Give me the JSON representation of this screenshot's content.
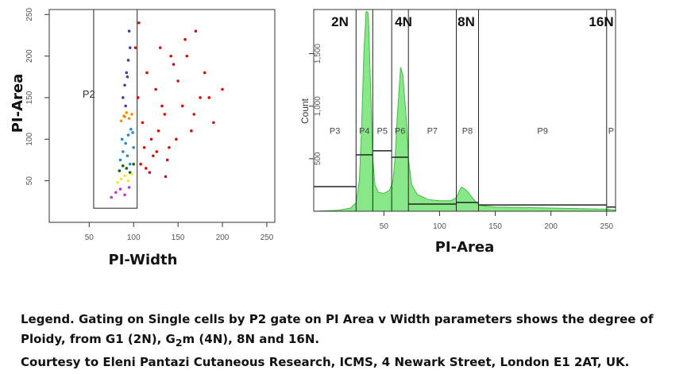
{
  "chart_data": [
    {
      "type": "scatter",
      "xlabel": "PI-Width",
      "ylabel": "PI-Area",
      "xlim": [
        5,
        259
      ],
      "ylim": [
        0,
        256
      ],
      "xticks": [
        50,
        100,
        150,
        200,
        250
      ],
      "yticks": [
        50,
        100,
        150,
        200,
        250
      ],
      "gate": {
        "label": "P2",
        "x": [
          55,
          104
        ],
        "y": [
          17,
          257
        ]
      },
      "series": [
        {
          "color": "#cc1111",
          "x": [
            105,
            110,
            115,
            120,
            125,
            130,
            135,
            140,
            145,
            150,
            155,
            160,
            165,
            170,
            175,
            180,
            190,
            200,
            108,
            112,
            118,
            122,
            128,
            132,
            138,
            142,
            148,
            158,
            168,
            185,
            102,
            106,
            114,
            126,
            136
          ],
          "y": [
            150,
            120,
            180,
            100,
            160,
            210,
            130,
            90,
            190,
            170,
            140,
            200,
            110,
            230,
            150,
            180,
            120,
            160,
            70,
            90,
            60,
            80,
            110,
            140,
            75,
            200,
            100,
            220,
            130,
            150,
            210,
            240,
            65,
            85,
            55
          ]
        },
        {
          "color": "#5533aa",
          "x": [
            88,
            90,
            92,
            94,
            96,
            95,
            93,
            91
          ],
          "y": [
            150,
            165,
            180,
            195,
            210,
            230,
            175,
            140
          ]
        },
        {
          "color": "#ff8800",
          "x": [
            86,
            89,
            92,
            95,
            98,
            90
          ],
          "y": [
            122,
            128,
            132,
            125,
            130,
            127
          ]
        },
        {
          "color": "#2288dd",
          "x": [
            85,
            88,
            91,
            94,
            97,
            100,
            87,
            93,
            96,
            99
          ],
          "y": [
            75,
            85,
            95,
            105,
            112,
            90,
            100,
            80,
            70,
            108
          ]
        },
        {
          "color": "#116611",
          "x": [
            84,
            88,
            92,
            96,
            100
          ],
          "y": [
            62,
            68,
            65,
            60,
            70
          ]
        },
        {
          "color": "#eeee22",
          "x": [
            82,
            86,
            90,
            94,
            98
          ],
          "y": [
            48,
            52,
            56,
            50,
            58
          ]
        },
        {
          "color": "#cc33cc",
          "x": [
            75,
            80,
            85,
            90,
            95
          ],
          "y": [
            30,
            36,
            40,
            33,
            42
          ]
        }
      ]
    },
    {
      "type": "area",
      "xlabel": "PI-Area",
      "ylabel": "Count",
      "xlim": [
        -13,
        258
      ],
      "ylim": [
        0,
        1920
      ],
      "xticks": [
        50,
        100,
        150,
        200,
        250
      ],
      "yticks": [
        {
          "value": 500,
          "label": "500"
        },
        {
          "value": 1000,
          "label": "1,000"
        },
        {
          "value": 1500,
          "label": "1,500"
        }
      ],
      "series": [
        {
          "color": "#88e888",
          "x": [
            -13,
            0,
            10,
            20,
            25,
            28,
            30,
            32,
            34,
            35,
            36,
            38,
            40,
            42,
            45,
            50,
            55,
            58,
            60,
            62,
            65,
            67,
            70,
            72,
            75,
            80,
            90,
            100,
            110,
            115,
            118,
            120,
            125,
            130,
            135,
            140,
            150,
            200,
            250,
            258
          ],
          "values": [
            0,
            5,
            10,
            30,
            80,
            300,
            800,
            1500,
            1900,
            1900,
            1880,
            1200,
            500,
            250,
            180,
            170,
            200,
            280,
            500,
            900,
            1370,
            1300,
            900,
            500,
            250,
            160,
            110,
            100,
            100,
            130,
            200,
            230,
            190,
            120,
            60,
            50,
            40,
            30,
            20,
            10
          ]
        }
      ],
      "gates": [
        {
          "label": "P3",
          "x": [
            -13,
            25
          ],
          "level": 234
        },
        {
          "label": "P4",
          "x": [
            25,
            40
          ],
          "level": 537
        },
        {
          "label": "P5",
          "x": [
            40,
            57
          ],
          "level": 575
        },
        {
          "label": "P6",
          "x": [
            57,
            72
          ],
          "level": 514
        },
        {
          "label": "P7",
          "x": [
            72,
            115
          ],
          "level": 68
        },
        {
          "label": "P8",
          "x": [
            115,
            135
          ],
          "level": 83
        },
        {
          "label": "P9",
          "x": [
            135,
            250
          ],
          "level": 60
        },
        {
          "label": "P",
          "x": [
            250,
            258
          ],
          "level": 40
        }
      ],
      "ploidy_labels": [
        "2N",
        "4N",
        "8N",
        "16N"
      ]
    }
  ],
  "caption": {
    "line1": "Legend. Gating on Single cells by P2 gate on PI Area v Width parameters  shows the degree of Ploidy, from G1 (2N), G",
    "sub": "2",
    "line1_end": "m (4N), 8N and 16N.",
    "line2": "Courtesy to Eleni Pantazi Cutaneous Research, ICMS, 4 Newark Street,  London E1 2AT, UK."
  }
}
